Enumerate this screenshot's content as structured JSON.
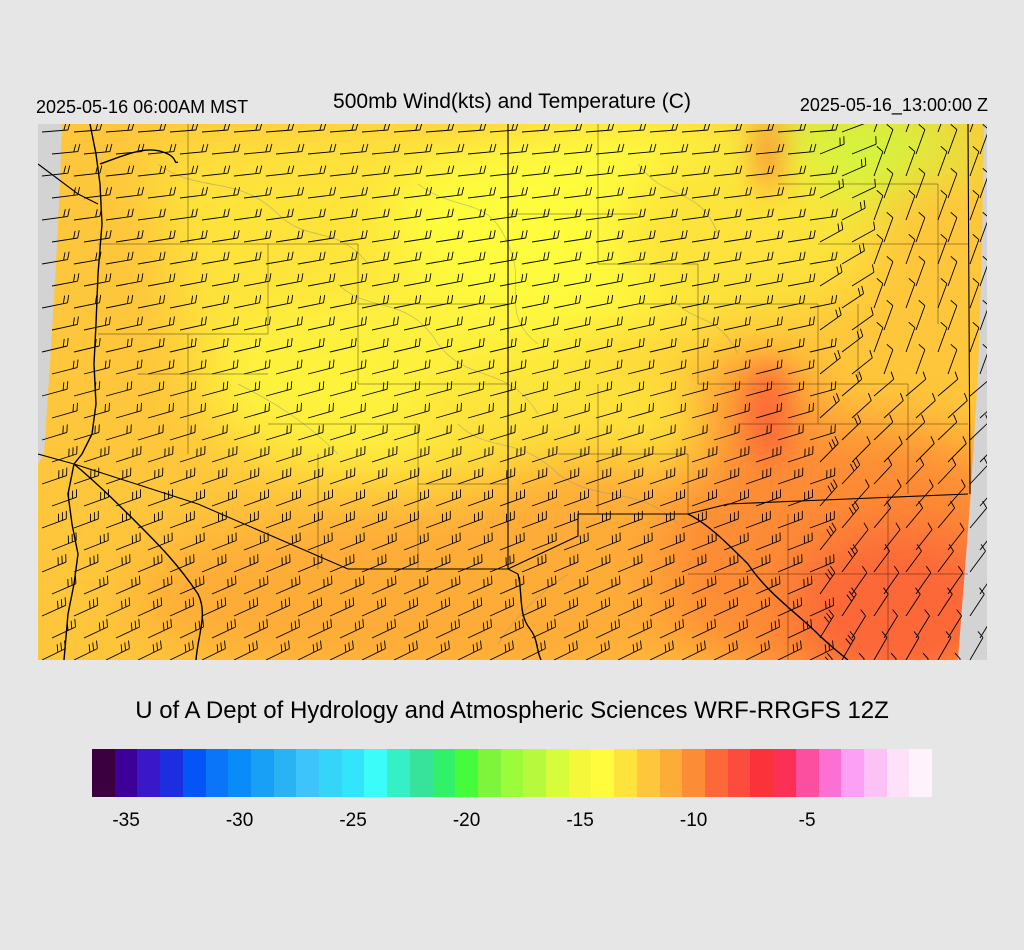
{
  "header": {
    "local_time": "2025-05-16 06:00AM MST",
    "title": "500mb Wind(kts) and Temperature (C)",
    "valid_time": "2025-05-16_13:00:00 Z"
  },
  "credit": "U of A Dept of Hydrology and Atmospheric Sciences WRF-RRGFS 12Z",
  "colorbar": {
    "colors": [
      "#3a0040",
      "#3d0099",
      "#3a17c8",
      "#1c2ee0",
      "#0455f5",
      "#0a75f8",
      "#0a8cf8",
      "#17a0f5",
      "#29b3f5",
      "#3cc4fb",
      "#35d5fa",
      "#33e5fb",
      "#3cfcfa",
      "#35efc6",
      "#37e39a",
      "#33f06a",
      "#45fc3c",
      "#7ef53a",
      "#9cfc3c",
      "#b6f93d",
      "#d7fc3c",
      "#f5f73a",
      "#fefc3c",
      "#fde33b",
      "#fec63a",
      "#feac38",
      "#fd8c36",
      "#fc6839",
      "#fc4c3d",
      "#fc323b",
      "#fc2f55",
      "#fc4fa0",
      "#fc70d4",
      "#fca0f5",
      "#fcc1f5",
      "#fce1f9",
      "#fef3fc"
    ],
    "labels": [
      "-35",
      "-30",
      "-25",
      "-20",
      "-15",
      "-10",
      "-5"
    ],
    "label_values": [
      -35,
      -30,
      -25,
      -20,
      -15,
      -10,
      -5
    ],
    "min": -36,
    "max": -1
  }
}
